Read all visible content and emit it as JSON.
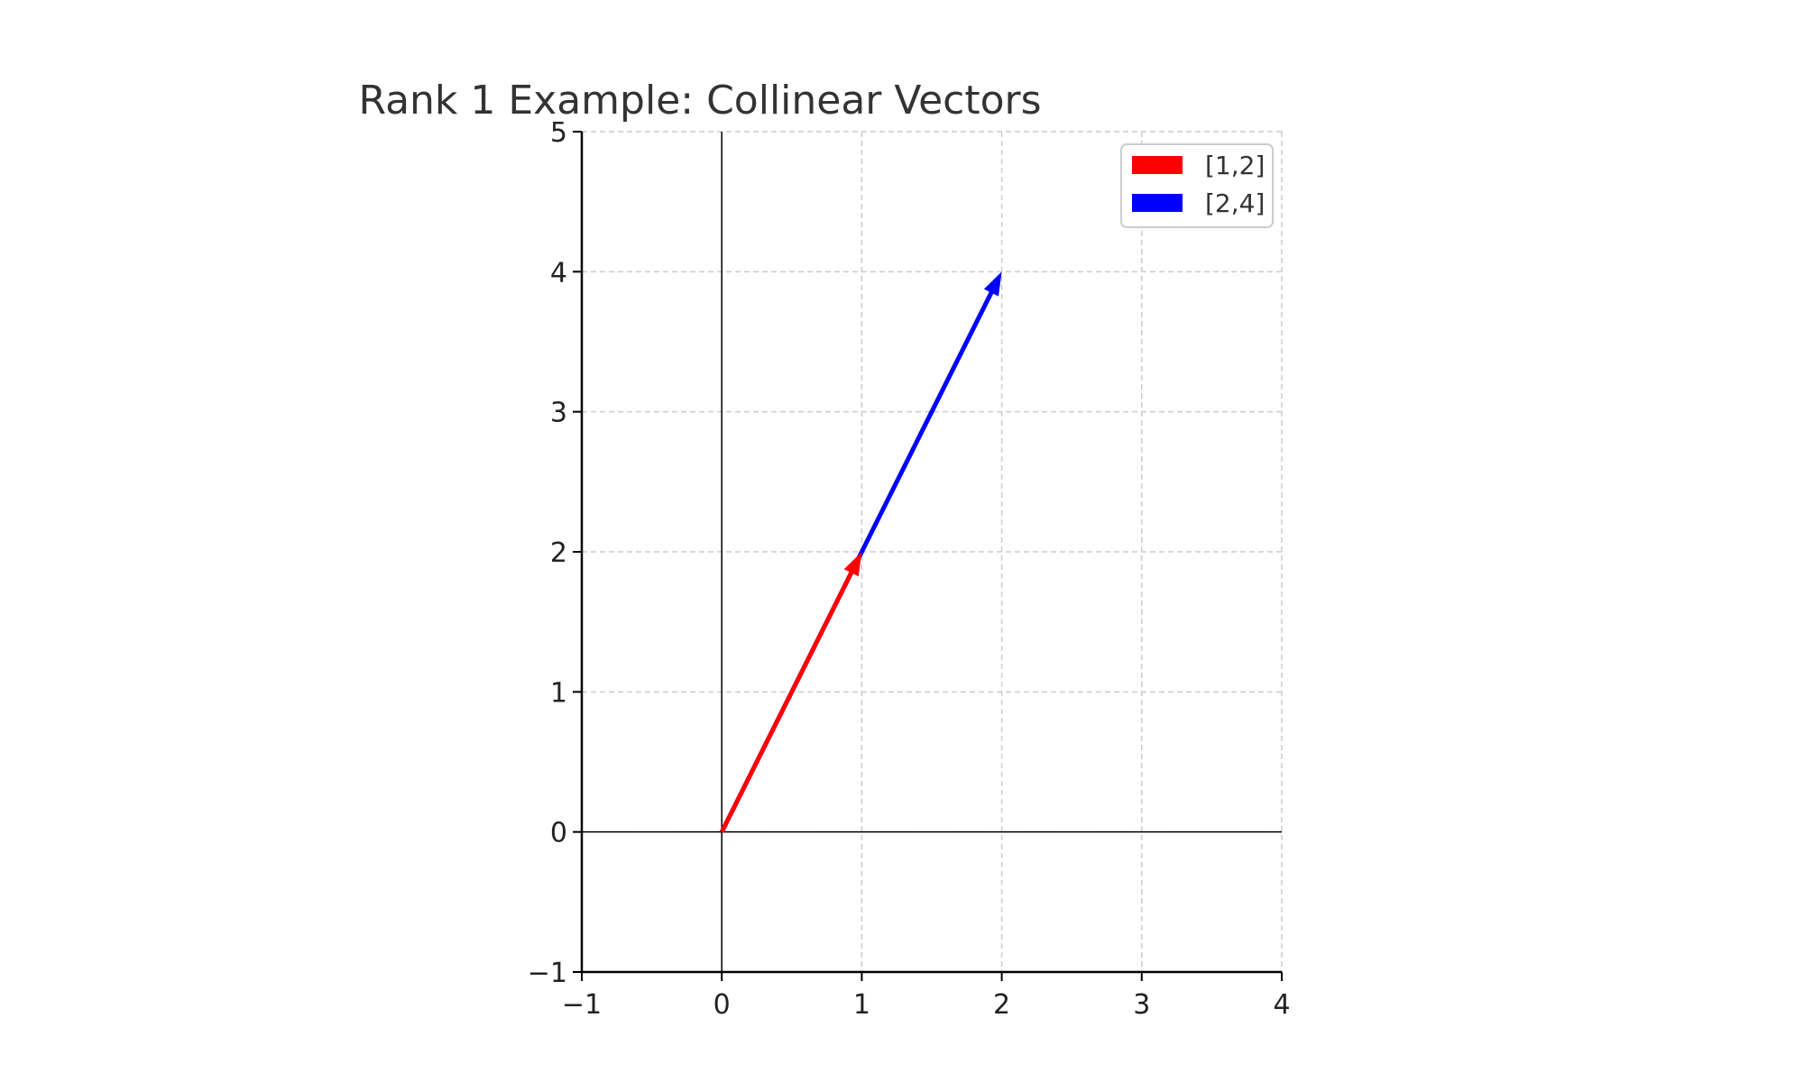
{
  "chart_data": {
    "type": "quiver",
    "title": "Rank 1 Example: Collinear Vectors",
    "xlabel": "",
    "ylabel": "",
    "xlim": [
      -1,
      4
    ],
    "ylim": [
      -1,
      5
    ],
    "xticks": [
      -1,
      0,
      1,
      2,
      3,
      4
    ],
    "yticks": [
      -1,
      0,
      1,
      2,
      3,
      4,
      5
    ],
    "xtick_labels": [
      "−1",
      "0",
      "1",
      "2",
      "3",
      "4"
    ],
    "ytick_labels": [
      "−1",
      "0",
      "1",
      "2",
      "3",
      "4",
      "5"
    ],
    "grid": true,
    "legend_position": "top-right",
    "series": [
      {
        "name": "[1,2]",
        "origin": [
          0,
          0
        ],
        "vector": [
          1,
          2
        ],
        "color": "#ff0000"
      },
      {
        "name": "[2,4]",
        "origin": [
          0,
          0
        ],
        "vector": [
          2,
          4
        ],
        "color": "#0000ff"
      }
    ]
  }
}
